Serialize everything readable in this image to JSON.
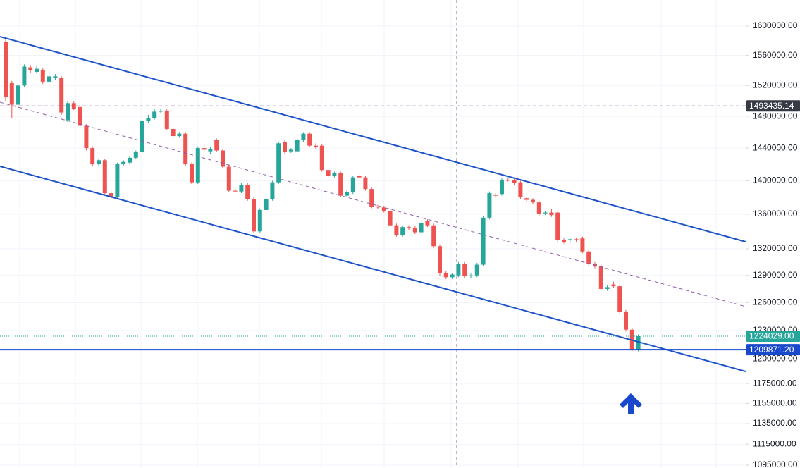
{
  "chart_data": {
    "type": "candlestick",
    "log_scale": true,
    "grid": true,
    "up_color": "#26a69a",
    "down_color": "#ef5350",
    "ylim": [
      1092300,
      1636500
    ],
    "yticks": [
      {
        "value": 1600000,
        "label": "1600000.00"
      },
      {
        "value": 1560000,
        "label": "1560000.00"
      },
      {
        "value": 1520000,
        "label": "1520000.00"
      },
      {
        "value": 1480000,
        "label": "1480000.00"
      },
      {
        "value": 1440000,
        "label": "1440000.00"
      },
      {
        "value": 1400000,
        "label": "1400000.00"
      },
      {
        "value": 1360000,
        "label": "1360000.00"
      },
      {
        "value": 1320000,
        "label": "1320000.00"
      },
      {
        "value": 1290000,
        "label": "1290000.00"
      },
      {
        "value": 1260000,
        "label": "1260000.00"
      },
      {
        "value": 1230000,
        "label": "1230000.00"
      },
      {
        "value": 1200000,
        "label": "1200000.00"
      },
      {
        "value": 1175000,
        "label": "1175000.00"
      },
      {
        "value": 1155000,
        "label": "1155000.00"
      },
      {
        "value": 1135000,
        "label": "1135000.00"
      },
      {
        "value": 1115000,
        "label": "1115000.00"
      },
      {
        "value": 1095000,
        "label": "1095000.00"
      }
    ],
    "price_lines": [
      {
        "value": 1493435.14,
        "label": "1493435.14",
        "color": "#363a45",
        "style": "dashed"
      },
      {
        "value": 1224029,
        "label": "1224029.00",
        "color": "#26a69a",
        "style": "dotted"
      },
      {
        "value": 1209871.2,
        "label": "1209871.20",
        "color": "#1848cc",
        "style": "solid"
      }
    ],
    "candles": [
      [
        1578000,
        1582000,
        1500000,
        1505000
      ],
      [
        1523000,
        1526000,
        1478000,
        1495000
      ],
      [
        1495000,
        1522000,
        1492000,
        1520000
      ],
      [
        1520000,
        1548000,
        1518000,
        1545000
      ],
      [
        1544000,
        1547000,
        1537000,
        1540000
      ],
      [
        1538000,
        1546000,
        1536000,
        1542000
      ],
      [
        1540000,
        1543000,
        1522000,
        1525000
      ],
      [
        1525000,
        1540000,
        1523000,
        1532000
      ],
      [
        1530000,
        1535000,
        1527000,
        1532000
      ],
      [
        1530000,
        1532000,
        1482000,
        1485000
      ],
      [
        1475000,
        1499000,
        1473000,
        1497000
      ],
      [
        1497000,
        1499000,
        1488000,
        1490000
      ],
      [
        1492000,
        1494000,
        1465000,
        1468000
      ],
      [
        1468000,
        1470000,
        1437000,
        1440000
      ],
      [
        1440000,
        1442000,
        1418000,
        1420000
      ],
      [
        1420000,
        1427000,
        1418000,
        1425000
      ],
      [
        1425000,
        1427000,
        1383000,
        1385000
      ],
      [
        1385000,
        1388000,
        1377000,
        1380000
      ],
      [
        1380000,
        1422000,
        1378000,
        1420000
      ],
      [
        1420000,
        1425000,
        1418000,
        1423000
      ],
      [
        1422000,
        1430000,
        1420000,
        1428000
      ],
      [
        1428000,
        1437000,
        1426000,
        1435000
      ],
      [
        1435000,
        1476000,
        1433000,
        1474000
      ],
      [
        1474000,
        1482000,
        1472000,
        1478000
      ],
      [
        1478000,
        1489000,
        1476000,
        1486000
      ],
      [
        1486000,
        1490000,
        1484000,
        1487000
      ],
      [
        1487000,
        1489000,
        1462000,
        1464000
      ],
      [
        1464000,
        1466000,
        1453000,
        1455000
      ],
      [
        1455000,
        1460000,
        1453000,
        1458000
      ],
      [
        1458000,
        1460000,
        1418000,
        1420000
      ],
      [
        1420000,
        1422000,
        1396000,
        1398000
      ],
      [
        1398000,
        1442000,
        1396000,
        1440000
      ],
      [
        1440000,
        1446000,
        1436000,
        1438000
      ],
      [
        1436000,
        1441000,
        1433000,
        1439000
      ],
      [
        1450000,
        1452000,
        1435000,
        1437000
      ],
      [
        1437000,
        1439000,
        1415000,
        1417000
      ],
      [
        1417000,
        1419000,
        1386000,
        1388000
      ],
      [
        1388000,
        1390000,
        1385000,
        1387000
      ],
      [
        1387000,
        1397000,
        1385000,
        1395000
      ],
      [
        1395000,
        1397000,
        1376000,
        1378000
      ],
      [
        1378000,
        1380000,
        1338000,
        1340000
      ],
      [
        1340000,
        1367000,
        1338000,
        1365000
      ],
      [
        1365000,
        1380000,
        1363000,
        1378000
      ],
      [
        1378000,
        1400000,
        1376000,
        1398000
      ],
      [
        1398000,
        1448000,
        1396000,
        1446000
      ],
      [
        1448000,
        1450000,
        1433000,
        1435000
      ],
      [
        1436000,
        1440000,
        1434000,
        1438000
      ],
      [
        1436000,
        1452000,
        1434000,
        1450000
      ],
      [
        1450000,
        1460000,
        1448000,
        1458000
      ],
      [
        1458000,
        1460000,
        1441000,
        1443000
      ],
      [
        1443000,
        1446000,
        1439000,
        1441000
      ],
      [
        1443000,
        1445000,
        1411000,
        1413000
      ],
      [
        1413000,
        1415000,
        1404000,
        1406000
      ],
      [
        1406000,
        1411000,
        1404000,
        1409000
      ],
      [
        1409000,
        1411000,
        1380000,
        1382000
      ],
      [
        1382000,
        1388000,
        1380000,
        1386000
      ],
      [
        1386000,
        1406000,
        1384000,
        1404000
      ],
      [
        1406000,
        1408000,
        1402000,
        1404000
      ],
      [
        1404000,
        1406000,
        1388000,
        1390000
      ],
      [
        1390000,
        1392000,
        1367000,
        1369000
      ],
      [
        1369000,
        1371000,
        1366000,
        1368000
      ],
      [
        1368000,
        1370000,
        1362000,
        1364000
      ],
      [
        1364000,
        1366000,
        1345000,
        1347000
      ],
      [
        1347000,
        1349000,
        1334000,
        1336000
      ],
      [
        1336000,
        1347000,
        1334000,
        1345000
      ],
      [
        1345000,
        1347000,
        1342000,
        1344000
      ],
      [
        1344000,
        1346000,
        1337000,
        1339000
      ],
      [
        1339000,
        1352000,
        1337000,
        1350000
      ],
      [
        1352000,
        1354000,
        1345000,
        1347000
      ],
      [
        1347000,
        1349000,
        1321000,
        1323000
      ],
      [
        1323000,
        1325000,
        1290000,
        1293000
      ],
      [
        1293000,
        1295000,
        1286000,
        1288000
      ],
      [
        1288000,
        1293000,
        1286000,
        1291000
      ],
      [
        1290000,
        1305000,
        1288000,
        1303000
      ],
      [
        1303000,
        1305000,
        1287000,
        1289000
      ],
      [
        1289000,
        1292000,
        1287000,
        1290000
      ],
      [
        1290000,
        1304000,
        1288000,
        1302000
      ],
      [
        1302000,
        1358000,
        1300000,
        1356000
      ],
      [
        1356000,
        1387000,
        1354000,
        1385000
      ],
      [
        1383000,
        1385000,
        1380000,
        1382000
      ],
      [
        1384000,
        1403000,
        1382000,
        1401000
      ],
      [
        1401000,
        1403000,
        1399000,
        1400000
      ],
      [
        1401000,
        1403000,
        1395000,
        1397000
      ],
      [
        1398000,
        1400000,
        1378000,
        1380000
      ],
      [
        1379000,
        1381000,
        1375000,
        1377000
      ],
      [
        1377000,
        1379000,
        1372000,
        1374000
      ],
      [
        1374000,
        1376000,
        1358000,
        1360000
      ],
      [
        1361000,
        1364000,
        1359000,
        1362000
      ],
      [
        1362000,
        1366000,
        1357000,
        1359000
      ],
      [
        1362000,
        1364000,
        1328000,
        1330000
      ],
      [
        1330000,
        1332000,
        1326000,
        1328000
      ],
      [
        1330000,
        1333000,
        1328000,
        1331000
      ],
      [
        1331000,
        1333000,
        1328000,
        1330000
      ],
      [
        1332000,
        1334000,
        1315000,
        1317000
      ],
      [
        1317000,
        1319000,
        1301000,
        1303000
      ],
      [
        1303000,
        1305000,
        1298000,
        1300000
      ],
      [
        1300000,
        1302000,
        1273000,
        1275000
      ],
      [
        1275000,
        1279000,
        1273000,
        1277000
      ],
      [
        1280000,
        1283000,
        1276000,
        1278000
      ],
      [
        1278000,
        1280000,
        1248000,
        1250000
      ],
      [
        1250000,
        1252000,
        1229000,
        1231000
      ],
      [
        1231000,
        1233000,
        1208000,
        1210000
      ],
      [
        1210000,
        1226000,
        1208000,
        1224029
      ]
    ]
  }
}
